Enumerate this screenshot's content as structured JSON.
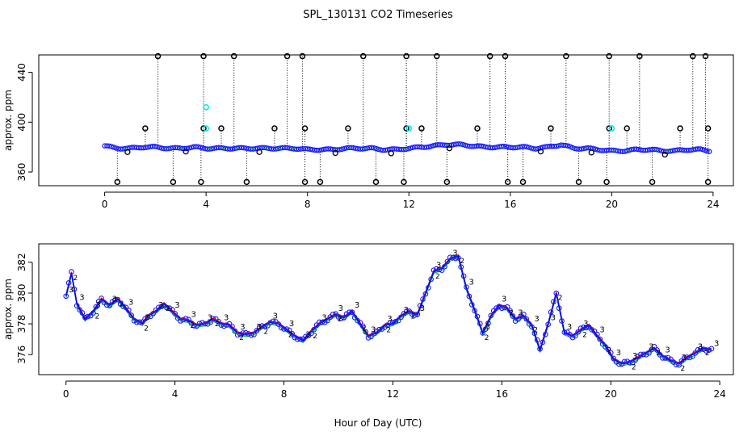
{
  "title": "SPL_130131  CO2 Timeseries",
  "xlabel": "Hour of Day (UTC)",
  "colors": {
    "series_main": "#1c1cff",
    "outlier": "#000000",
    "aux": "#00e5ee",
    "agg1": "#ff0000",
    "agg2": "#00cc00",
    "agg3": "#0000ff"
  },
  "chart_data": [
    {
      "type": "scatter",
      "name": "top-panel",
      "ylabel": "approx. ppm",
      "xlim": [
        -2.6,
        24.8
      ],
      "ylim": [
        349,
        454
      ],
      "xticks": [
        0,
        4,
        8,
        12,
        16,
        20,
        24
      ],
      "xtick_labels": [
        "0",
        "4",
        "8",
        "12",
        "16",
        "20",
        "24"
      ],
      "yticks": [
        360,
        400,
        440
      ],
      "ytick_labels": [
        "360",
        "400",
        "440"
      ],
      "baseline": {
        "x": [
          0.0,
          0.5,
          1.0,
          1.5,
          2.0,
          2.5,
          3.0,
          3.5,
          4.0,
          4.5,
          5.0,
          5.5,
          6.0,
          6.5,
          7.0,
          7.5,
          8.0,
          8.5,
          9.0,
          9.5,
          10.0,
          10.5,
          11.0,
          11.5,
          12.0,
          12.5,
          13.0,
          13.5,
          14.0,
          14.5,
          15.0,
          15.5,
          16.0,
          16.5,
          17.0,
          17.5,
          18.0,
          18.5,
          19.0,
          19.5,
          20.0,
          20.5,
          21.0,
          21.5,
          22.0,
          22.5,
          23.0,
          23.5,
          23.8
        ],
        "y": [
          381,
          379,
          379,
          380,
          380,
          379,
          379,
          380,
          379,
          379,
          379,
          379,
          379,
          379,
          379,
          379,
          378,
          378,
          378,
          379,
          379,
          379,
          378,
          378,
          379,
          380,
          381,
          382,
          382,
          381,
          380,
          380,
          380,
          380,
          379,
          380,
          382,
          379,
          379,
          378,
          377,
          377,
          378,
          378,
          377,
          377,
          378,
          378,
          377
        ]
      },
      "spikes_high": [
        2.1,
        3.9,
        5.1,
        7.2,
        7.8,
        10.2,
        11.9,
        13.1,
        15.2,
        15.8,
        18.2,
        19.9,
        21.1,
        23.2,
        23.7
      ],
      "spikes_mid": [
        1.6,
        3.9,
        4.6,
        6.7,
        7.9,
        9.6,
        11.9,
        12.5,
        14.7,
        17.6,
        19.9,
        20.6,
        22.7,
        23.8
      ],
      "spikes_low": [
        0.5,
        2.7,
        3.8,
        5.6,
        7.9,
        8.5,
        10.7,
        11.8,
        13.5,
        15.9,
        16.5,
        18.7,
        19.8,
        21.6,
        23.8
      ],
      "high_value": 453,
      "mid_value": 395,
      "low_value": 352
    },
    {
      "type": "line",
      "name": "bottom-panel",
      "ylabel": "approx. ppm",
      "xlim": [
        -1.0,
        24.5
      ],
      "ylim": [
        374.7,
        383.2
      ],
      "xticks": [
        0,
        4,
        8,
        12,
        16,
        20,
        24
      ],
      "xtick_labels": [
        "0",
        "4",
        "8",
        "12",
        "16",
        "20",
        "24"
      ],
      "yticks": [
        376,
        378,
        380,
        382
      ],
      "ytick_labels": [
        "376",
        "378",
        "380",
        "382"
      ],
      "marker_label": "3",
      "alt_marker_label": "2",
      "x": [
        0.0,
        0.2,
        0.4,
        0.7,
        1.0,
        1.3,
        1.6,
        1.9,
        2.2,
        2.5,
        2.8,
        3.0,
        3.3,
        3.6,
        3.9,
        4.2,
        4.5,
        4.8,
        5.1,
        5.4,
        5.7,
        6.0,
        6.3,
        6.6,
        6.9,
        7.2,
        7.5,
        7.8,
        8.1,
        8.4,
        8.7,
        9.0,
        9.3,
        9.6,
        9.9,
        10.2,
        10.5,
        10.8,
        11.1,
        11.4,
        11.7,
        12.0,
        12.3,
        12.6,
        12.9,
        13.2,
        13.5,
        13.8,
        14.1,
        14.4,
        14.7,
        15.0,
        15.3,
        15.6,
        15.9,
        16.2,
        16.5,
        16.8,
        17.1,
        17.4,
        17.7,
        18.0,
        18.3,
        18.6,
        18.9,
        19.2,
        19.5,
        19.8,
        20.1,
        20.4,
        20.7,
        21.0,
        21.3,
        21.6,
        21.9,
        22.2,
        22.5,
        22.8,
        23.1,
        23.4,
        23.7
      ],
      "y": [
        379.8,
        381.3,
        379.3,
        378.3,
        378.8,
        379.6,
        379.2,
        379.6,
        379.0,
        378.3,
        378.0,
        378.5,
        378.8,
        379.3,
        378.8,
        378.3,
        378.2,
        377.9,
        378.0,
        378.3,
        378.0,
        377.9,
        377.4,
        377.3,
        377.4,
        377.8,
        378.1,
        378.0,
        377.6,
        377.2,
        376.9,
        377.5,
        378.0,
        378.3,
        378.6,
        378.4,
        378.8,
        378.0,
        377.2,
        377.4,
        377.9,
        378.0,
        378.5,
        378.8,
        378.6,
        380.0,
        381.4,
        381.6,
        382.2,
        382.4,
        380.3,
        378.9,
        377.4,
        378.5,
        379.2,
        379.0,
        378.3,
        378.5,
        377.9,
        376.3,
        378.0,
        380.0,
        377.4,
        377.2,
        377.6,
        377.9,
        377.2,
        376.6,
        375.7,
        375.4,
        375.5,
        375.8,
        376.1,
        376.4,
        375.9,
        375.6,
        375.4,
        375.8,
        376.1,
        376.4,
        376.3
      ]
    }
  ]
}
